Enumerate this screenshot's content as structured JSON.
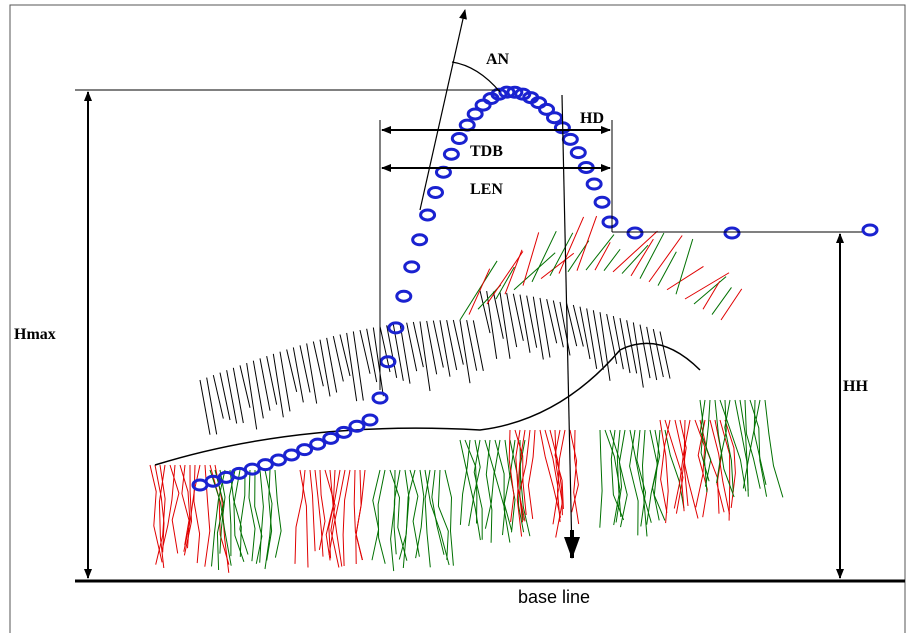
{
  "labels": {
    "an": "AN",
    "hd": "HD",
    "tdb": "TDB",
    "len": "LEN",
    "hmax": "Hmax",
    "hh": "HH",
    "base_line": "base line"
  }
}
